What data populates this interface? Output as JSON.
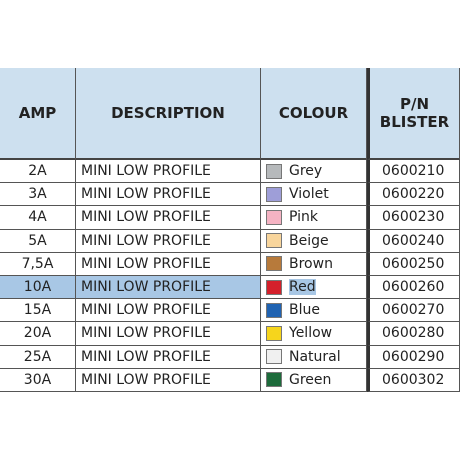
{
  "header": {
    "amp": "AMP",
    "description": "DESCRIPTION",
    "colour": "COLOUR",
    "pn": [
      "P/N",
      "BLISTER"
    ]
  },
  "table": {
    "rows": [
      {
        "amp": "2A",
        "description": "MINI LOW PROFILE",
        "colour": "Grey",
        "swatch": "#b6b9bb",
        "pn": "0600210"
      },
      {
        "amp": "3A",
        "description": "MINI LOW PROFILE",
        "colour": "Violet",
        "swatch": "#9e9ed8",
        "pn": "0600220"
      },
      {
        "amp": "4A",
        "description": "MINI LOW PROFILE",
        "colour": "Pink",
        "swatch": "#f5b3c3",
        "pn": "0600230"
      },
      {
        "amp": "5A",
        "description": "MINI LOW PROFILE",
        "colour": "Beige",
        "swatch": "#f8d59c",
        "pn": "0600240"
      },
      {
        "amp": "7,5A",
        "description": "MINI LOW PROFILE",
        "colour": "Brown",
        "swatch": "#b77a3b",
        "pn": "0600250"
      },
      {
        "amp": "10A",
        "description": "MINI LOW PROFILE",
        "colour": "Red",
        "swatch": "#d4202b",
        "pn": "0600260"
      },
      {
        "amp": "15A",
        "description": "MINI LOW PROFILE",
        "colour": "Blue",
        "swatch": "#2063b2",
        "pn": "0600270"
      },
      {
        "amp": "20A",
        "description": "MINI LOW PROFILE",
        "colour": "Yellow",
        "swatch": "#f6d51c",
        "pn": "0600280"
      },
      {
        "amp": "25A",
        "description": "MINI LOW PROFILE",
        "colour": "Natural",
        "swatch": "#f0f0f0",
        "pn": "0600290"
      },
      {
        "amp": "30A",
        "description": "MINI LOW PROFILE",
        "colour": "Green",
        "swatch": "#1d6b3b",
        "pn": "0600302"
      }
    ]
  }
}
